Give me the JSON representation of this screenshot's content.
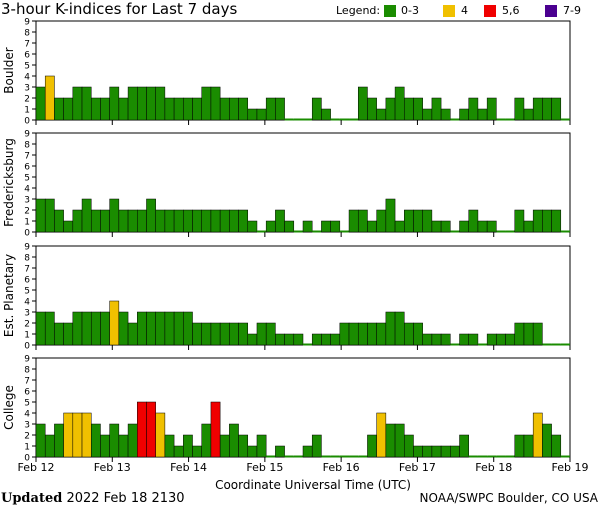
{
  "title": "3-hour K-indices for Last 7 days",
  "legend": {
    "label": "Legend:",
    "items": [
      {
        "label": "0-3",
        "color": "#1a8c00"
      },
      {
        "label": "4",
        "color": "#f0c000"
      },
      {
        "label": "5,6",
        "color": "#f00000"
      },
      {
        "label": "7-9",
        "color": "#4b0090"
      }
    ]
  },
  "footer": {
    "updated_label": "Updated",
    "updated_value": "2022 Feb 18 2130",
    "credit": "NOAA/SWPC Boulder, CO USA"
  },
  "chart_data": {
    "type": "bar",
    "xlabel": "Coordinate Universal Time (UTC)",
    "x_tick_labels": [
      "Feb 12",
      "Feb 13",
      "Feb 14",
      "Feb 15",
      "Feb 16",
      "Feb 17",
      "Feb 18",
      "Feb 19"
    ],
    "ylim": [
      0,
      9
    ],
    "y_ticks": [
      0,
      1,
      2,
      3,
      4,
      5,
      6,
      7,
      8,
      9
    ],
    "series": [
      {
        "name": "Boulder",
        "values": [
          3,
          4,
          2,
          2,
          3,
          3,
          2,
          2,
          3,
          2,
          3,
          3,
          3,
          3,
          2,
          2,
          2,
          2,
          3,
          3,
          2,
          2,
          2,
          1,
          1,
          2,
          2,
          0,
          0,
          0,
          2,
          1,
          0,
          0,
          0,
          3,
          2,
          1,
          2,
          3,
          2,
          2,
          1,
          2,
          1,
          0,
          1,
          2,
          1,
          2,
          0,
          0,
          2,
          1,
          2,
          2,
          2,
          0
        ]
      },
      {
        "name": "Fredericksburg",
        "values": [
          3,
          3,
          2,
          1,
          2,
          3,
          2,
          2,
          3,
          2,
          2,
          2,
          3,
          2,
          2,
          2,
          2,
          2,
          2,
          2,
          2,
          2,
          2,
          1,
          0,
          1,
          2,
          1,
          0,
          1,
          0,
          1,
          1,
          0,
          2,
          2,
          1,
          2,
          3,
          1,
          2,
          2,
          2,
          1,
          1,
          0,
          1,
          2,
          1,
          1,
          0,
          0,
          2,
          1,
          2,
          2,
          2,
          0
        ]
      },
      {
        "name": "Est. Planetary",
        "values": [
          3,
          3,
          2,
          2,
          3,
          3,
          3,
          3,
          4,
          3,
          2,
          3,
          3,
          3,
          3,
          3,
          3,
          2,
          2,
          2,
          2,
          2,
          2,
          1,
          2,
          2,
          1,
          1,
          1,
          0,
          1,
          1,
          1,
          2,
          2,
          2,
          2,
          2,
          3,
          3,
          2,
          2,
          1,
          1,
          1,
          0,
          1,
          1,
          0,
          1,
          1,
          1,
          2,
          2,
          2,
          0,
          0,
          0
        ]
      },
      {
        "name": "College",
        "values": [
          3,
          2,
          3,
          4,
          4,
          4,
          3,
          2,
          3,
          2,
          3,
          5,
          5,
          4,
          2,
          1,
          2,
          1,
          3,
          5,
          2,
          3,
          2,
          1,
          2,
          0,
          1,
          0,
          0,
          1,
          2,
          0,
          0,
          0,
          0,
          0,
          2,
          4,
          3,
          3,
          2,
          1,
          1,
          1,
          1,
          1,
          2,
          0,
          0,
          0,
          0,
          0,
          2,
          2,
          4,
          3,
          2,
          0
        ]
      }
    ]
  }
}
